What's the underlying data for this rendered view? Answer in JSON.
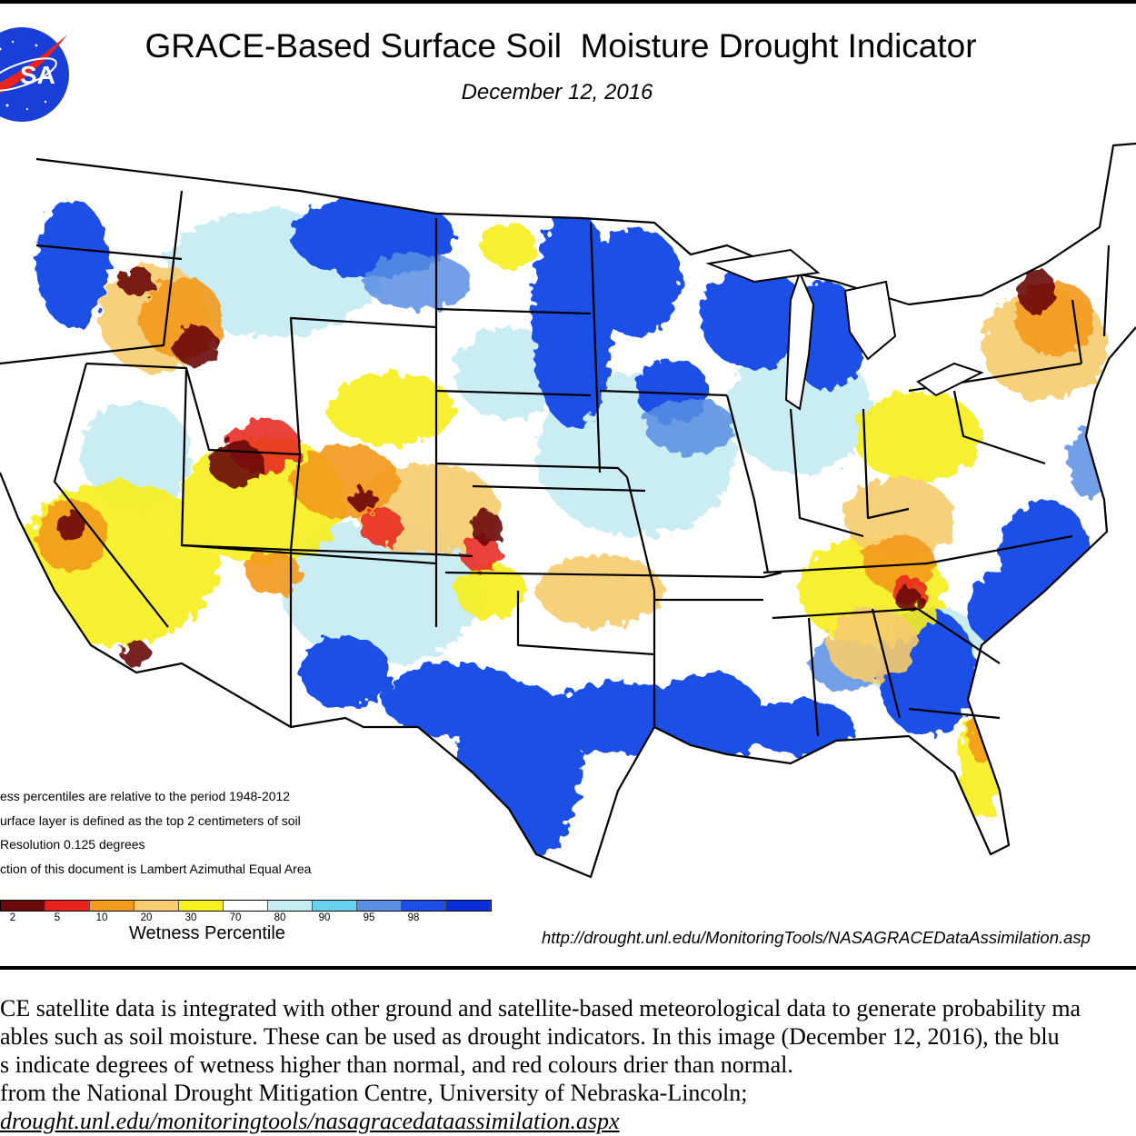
{
  "header": {
    "title": "GRACE-Based Surface Soil  Moisture Drought Indicator",
    "date": "December 12, 2016",
    "logo_text": "SA"
  },
  "map": {
    "region": "Contiguous United States",
    "wet_regions": [
      "Pacific Northwest coast",
      "Montana",
      "North Dakota",
      "Minnesota",
      "Wisconsin",
      "Michigan",
      "Texas",
      "Louisiana",
      "Alabama",
      "Georgia",
      "North Carolina"
    ],
    "dry_regions": [
      "Idaho",
      "Utah",
      "Colorado",
      "Nevada",
      "California",
      "Arizona",
      "Tennessee",
      "Kentucky",
      "West Virginia",
      "Ohio",
      "New York",
      "Pennsylvania",
      "Florida"
    ]
  },
  "notes": [
    "ess percentiles are relative to the period 1948-2012",
    "urface layer is defined as the top 2 centimeters of soil",
    "Resolution 0.125 degrees",
    "ction of this document is Lambert Azimuthal Equal Area"
  ],
  "legend": {
    "title": "Wetness Percentile",
    "colors": [
      "#6b0a0a",
      "#e8231d",
      "#f39a1c",
      "#f7cc6e",
      "#f7ef1e",
      "#ffffff",
      "#c5ecf3",
      "#66d4ef",
      "#5a8fe3",
      "#1b4fe6",
      "#0a2fd8"
    ],
    "ticks": [
      "2",
      "5",
      "10",
      "20",
      "30",
      "70",
      "80",
      "90",
      "95",
      "98"
    ]
  },
  "source_url": "http://drought.unl.edu/MonitoringTools/NASAGRACEDataAssimilation.asp",
  "caption": {
    "line1": "CE satellite data is integrated with other ground and satellite-based meteorological data to generate probability ma",
    "line2": "ables such as soil moisture.  These can be used as drought indicators.  In this image (December 12, 2016), the blu",
    "line3": "s indicate degrees of wetness higher than normal, and red colours drier than normal.",
    "line4": "from the National Drought Mitigation Centre, University of Nebraska-Lincoln;",
    "line5": "drought.unl.edu/monitoringtools/nasagracedataassimilation.aspx"
  }
}
